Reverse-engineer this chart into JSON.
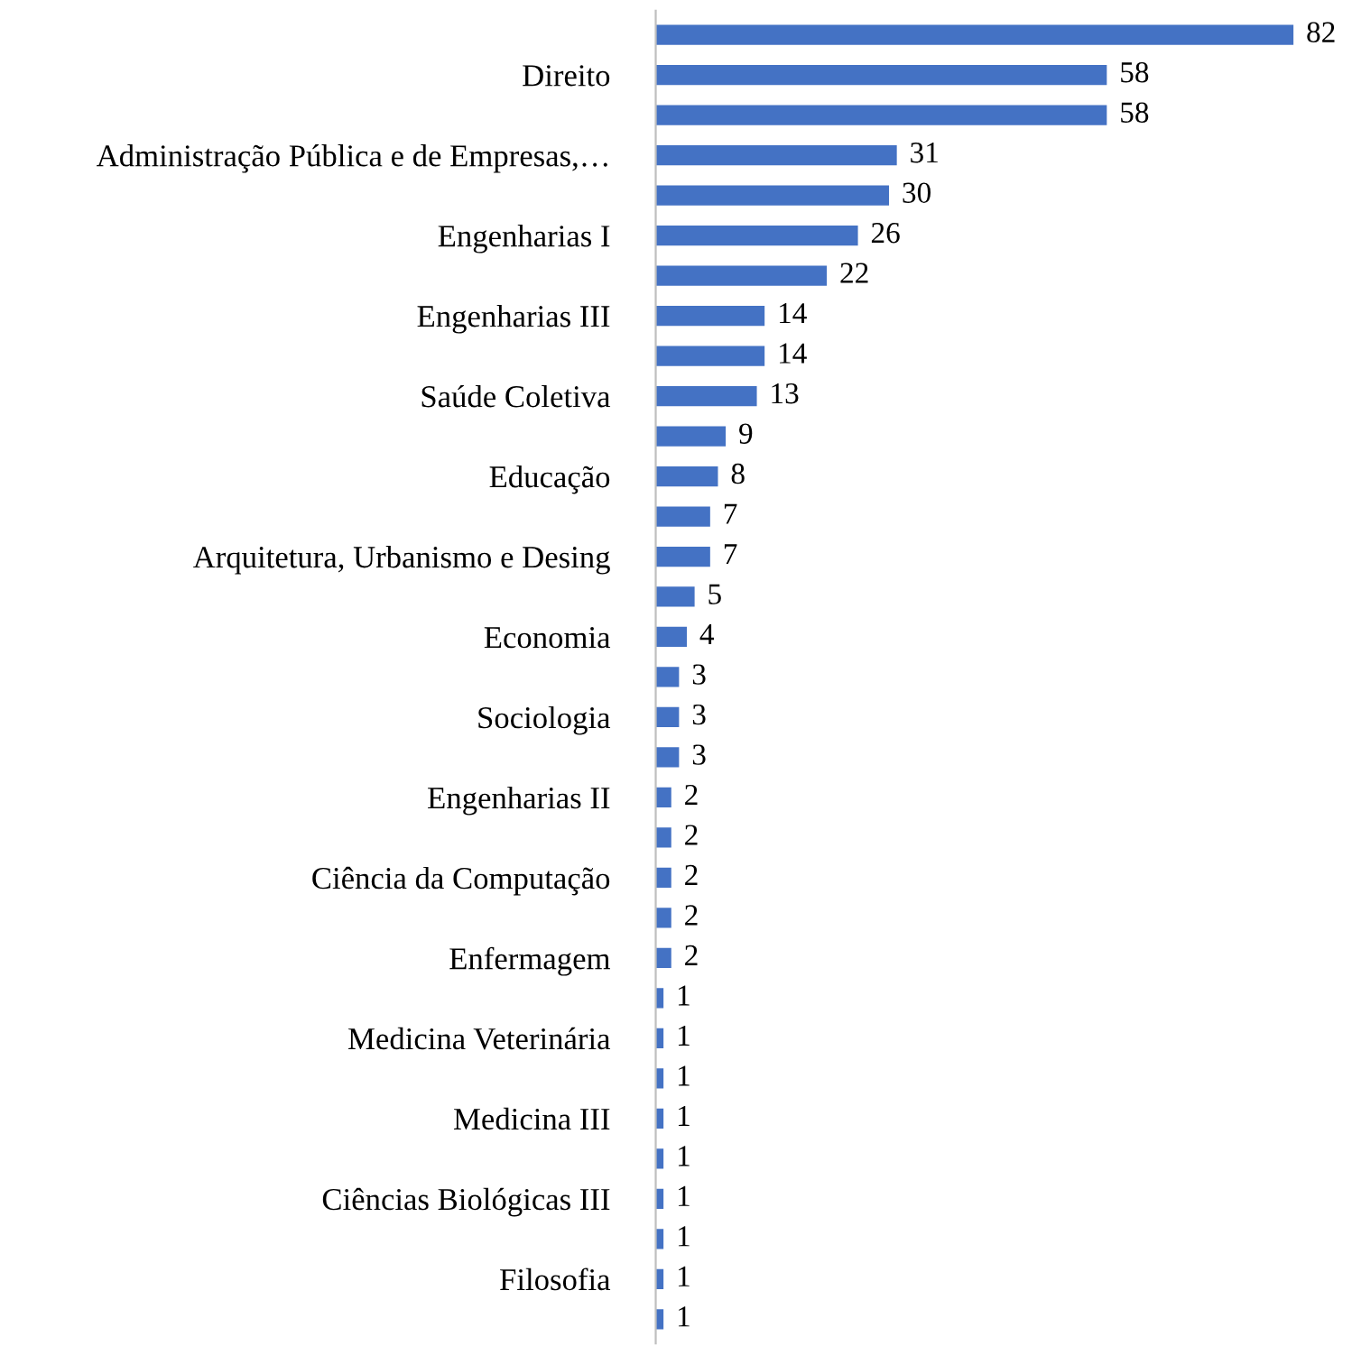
{
  "chart_data": {
    "type": "bar",
    "orientation": "horizontal",
    "data_labels": true,
    "color": "#4472c4",
    "categories": [
      null,
      "Direito",
      null,
      "Administração Pública e de Empresas,…",
      null,
      "Engenharias I",
      null,
      "Engenharias III",
      null,
      "Saúde Coletiva",
      null,
      "Educação",
      null,
      "Arquitetura, Urbanismo e Desing",
      null,
      "Economia",
      null,
      "Sociologia",
      null,
      "Engenharias II",
      null,
      "Ciência da Computação",
      null,
      "Enfermagem",
      null,
      "Medicina Veterinária",
      null,
      "Medicina III",
      null,
      "Ciências Biológicas III",
      null,
      "Filosofia",
      null
    ],
    "values": [
      82,
      58,
      58,
      31,
      30,
      26,
      22,
      14,
      14,
      13,
      9,
      8,
      7,
      7,
      5,
      4,
      3,
      3,
      3,
      2,
      2,
      2,
      2,
      2,
      1,
      1,
      1,
      1,
      1,
      1,
      1,
      1,
      1
    ]
  }
}
